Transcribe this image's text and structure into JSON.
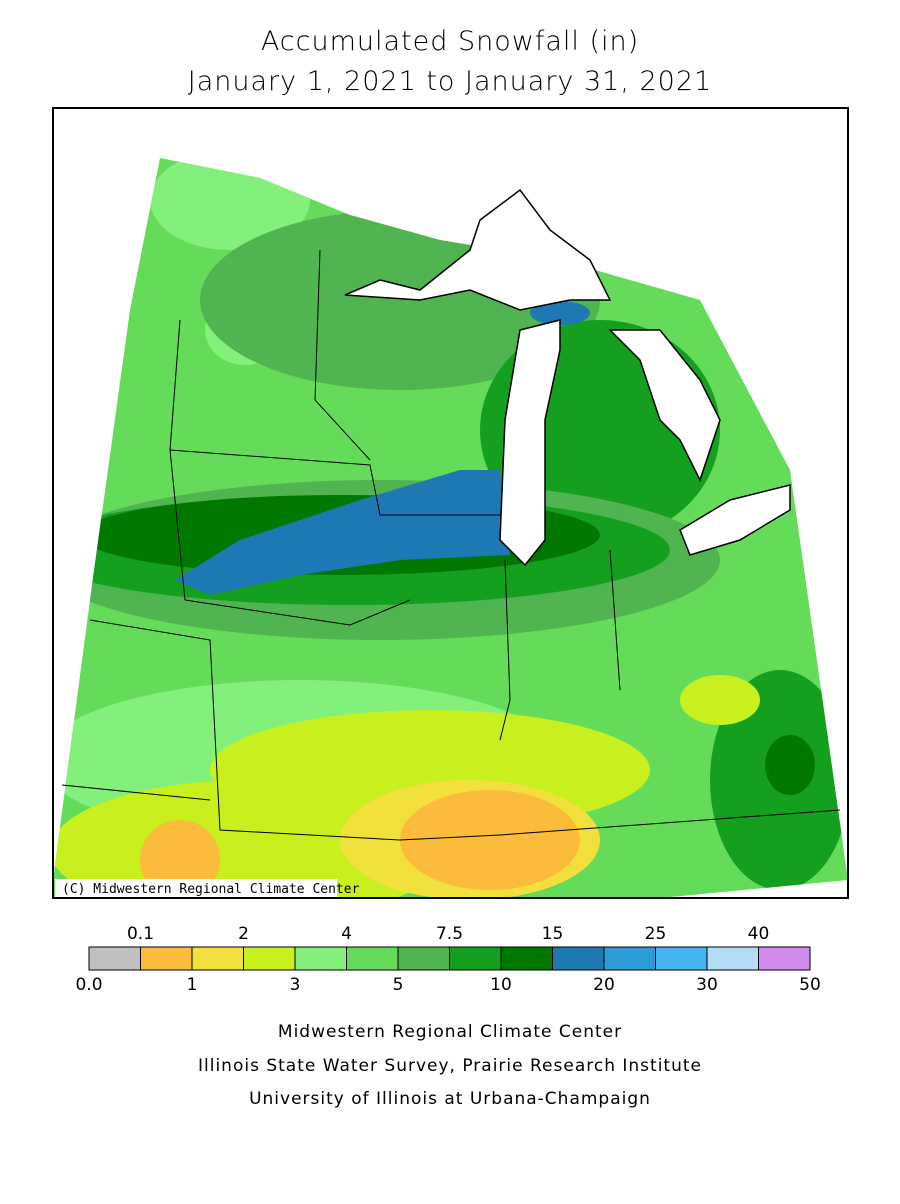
{
  "title": {
    "line1": "Accumulated Snowfall (in)",
    "line2": "January 1, 2021 to January 31, 2021"
  },
  "map": {
    "credit": "(C) Midwestern Regional Climate Center"
  },
  "legend": {
    "colors": [
      "#c0c0c0",
      "#fbbc3c",
      "#f2e03c",
      "#c8f01e",
      "#82f07a",
      "#64dc5a",
      "#50b450",
      "#14a01e",
      "#007800",
      "#1e78b4",
      "#2d9bd7",
      "#46b4f0",
      "#b4dcf5",
      "#d28cf0"
    ],
    "top_labels": [
      "0.1",
      "2",
      "4",
      "7.5",
      "15",
      "25",
      "40"
    ],
    "bottom_labels": [
      "0.0",
      "1",
      "3",
      "5",
      "10",
      "20",
      "30",
      "50"
    ]
  },
  "footer": {
    "lines": [
      "Midwestern Regional Climate Center",
      "Illinois State Water Survey, Prairie Research Institute",
      "University of Illinois at Urbana-Champaign"
    ]
  }
}
